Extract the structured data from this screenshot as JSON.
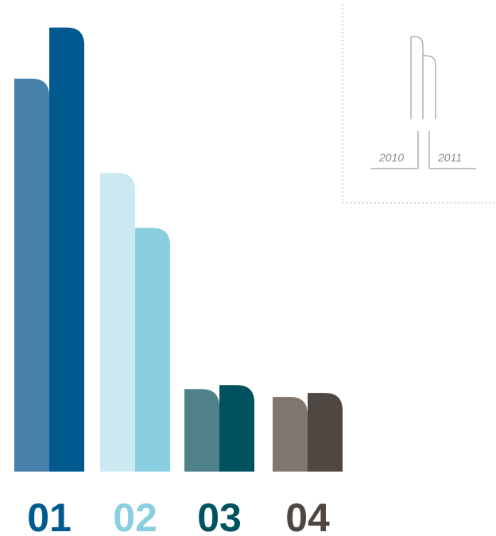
{
  "chart_data": {
    "type": "bar",
    "title": "",
    "xlabel": "",
    "ylabel": "",
    "categories": [
      "01",
      "02",
      "03",
      "04"
    ],
    "series": [
      {
        "name": "2010",
        "values": [
          100,
          76,
          21,
          19
        ]
      },
      {
        "name": "2011",
        "values": [
          113,
          62,
          22,
          20
        ]
      }
    ],
    "ylim": [
      0,
      120
    ],
    "grid": false,
    "legend_position": "top-right",
    "colors": {
      "2010": [
        "#4680ab",
        "#cce9f1",
        "#4f818b",
        "#81776f"
      ],
      "2011": [
        "#005a8f",
        "#8acfe0",
        "#00525e",
        "#4f4742"
      ],
      "labels": [
        "#005a8f",
        "#8acfe0",
        "#00525e",
        "#4f4742"
      ]
    }
  }
}
